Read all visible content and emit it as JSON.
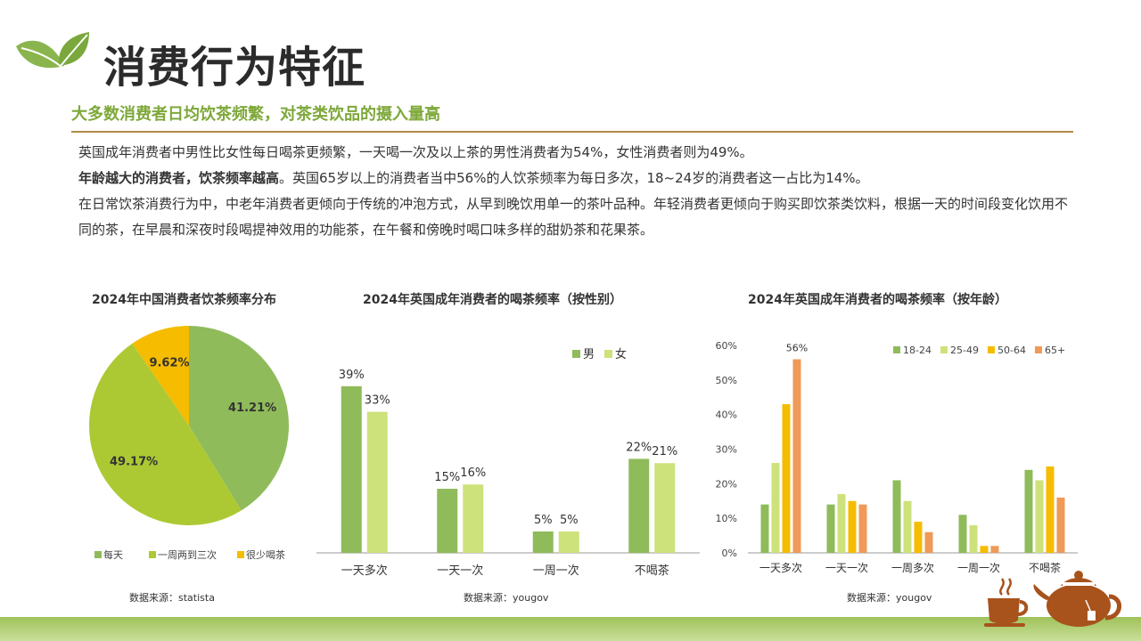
{
  "header": {
    "title": "消费行为特征",
    "subtitle": "大多数消费者日均饮茶频繁，对茶类饮品的摄入量高",
    "paragraph1": "英国成年消费者中男性比女性每日喝茶更频繁，一天喝一次及以上茶的男性消费者为54%，女性消费者则为49%。",
    "paragraph2_bold": "年龄越大的消费者，饮茶频率越高",
    "paragraph2_rest": "。英国65岁以上的消费者当中56%的人饮茶频率为每日多次，18~24岁的消费者这一占比为14%。",
    "paragraph3": "在日常饮茶消费行为中，中老年消费者更倾向于传统的冲泡方式，从早到晚饮用单一的茶叶品种。年轻消费者更倾向于购买即饮茶类饮料，根据一天的时间段变化饮用不同的茶，在早晨和深夜时段喝提神效用的功能茶，在午餐和傍晚时喝口味多样的甜奶茶和花果茶。"
  },
  "icons": {
    "logo": "leaf-icon",
    "decoration": "teapot-icon"
  },
  "colors": {
    "green": "#8fbb5a",
    "light_green": "#c9e07a",
    "yellow_green": "#acc934",
    "gold": "#f5bc00",
    "orange": "#ef9a58",
    "rule": "#b08a48",
    "subtitle": "#7ea83a"
  },
  "chart_data": [
    {
      "type": "pie",
      "title": "2024年中国消费者饮茶频率分布",
      "source": "数据来源：statista",
      "labels": [
        "每天",
        "一周两到三次",
        "很少喝茶"
      ],
      "values": [
        41.21,
        49.17,
        9.62
      ],
      "value_labels": [
        "41.21%",
        "49.17%",
        "9.62%"
      ],
      "colors": [
        "#8fbb5a",
        "#acc934",
        "#f5bc00"
      ],
      "legend": "bottom"
    },
    {
      "type": "bar",
      "title": "2024年英国成年消费者的喝茶频率（按性别）",
      "source": "数据来源：yougov",
      "categories": [
        "一天多次",
        "一天一次",
        "一周一次",
        "不喝茶"
      ],
      "series": [
        {
          "name": "男",
          "values": [
            39,
            15,
            5,
            22
          ],
          "color": "#8fbb5a"
        },
        {
          "name": "女",
          "values": [
            33,
            16,
            5,
            21
          ],
          "color": "#cde27a"
        }
      ],
      "unit": "%",
      "ylim": [
        0,
        45
      ],
      "legend": "top-right"
    },
    {
      "type": "bar",
      "title": "2024年英国成年消费者的喝茶频率（按年龄）",
      "source": "数据来源：yougov",
      "categories": [
        "一天多次",
        "一天一次",
        "一周多次",
        "一周一次",
        "不喝茶"
      ],
      "series": [
        {
          "name": "18-24",
          "values": [
            14,
            14,
            21,
            11,
            24
          ],
          "color": "#8fbb5a"
        },
        {
          "name": "25-49",
          "values": [
            26,
            17,
            15,
            8,
            21
          ],
          "color": "#cde27a"
        },
        {
          "name": "50-64",
          "values": [
            43,
            15,
            9,
            2,
            25
          ],
          "color": "#f5bc00"
        },
        {
          "name": "65+",
          "values": [
            56,
            14,
            6,
            2,
            16
          ],
          "color": "#ef9a58"
        }
      ],
      "annotation": "56%",
      "yticks": [
        "0%",
        "10%",
        "20%",
        "30%",
        "40%",
        "50%",
        "60%"
      ],
      "ylim": [
        0,
        60
      ],
      "legend": "top-right"
    }
  ]
}
